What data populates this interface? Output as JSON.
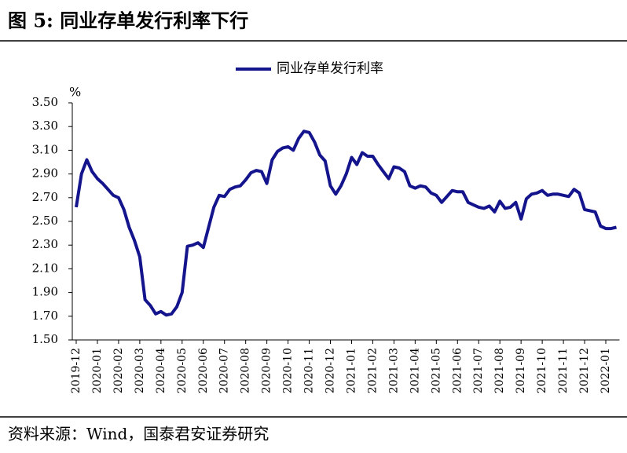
{
  "chart_data": {
    "type": "line",
    "title": "图 5:  同业存单发行利率下行",
    "y_unit": "%",
    "source": "资料来源：Wind，国泰君安证券研究",
    "categories": [
      "2019-12",
      null,
      null,
      null,
      "2020-01",
      null,
      null,
      null,
      "2020-02",
      null,
      null,
      null,
      "2020-03",
      null,
      null,
      null,
      "2020-04",
      null,
      null,
      null,
      "2020-05",
      null,
      null,
      null,
      "2020-06",
      null,
      null,
      null,
      "2020-07",
      null,
      null,
      null,
      "2020-08",
      null,
      null,
      null,
      "2020-09",
      null,
      null,
      null,
      "2020-10",
      null,
      null,
      null,
      "2020-11",
      null,
      null,
      null,
      "2020-12",
      null,
      null,
      null,
      "2021-01",
      null,
      null,
      null,
      "2021-02",
      null,
      null,
      null,
      "2021-03",
      null,
      null,
      null,
      "2021-04",
      null,
      null,
      null,
      "2021-05",
      null,
      null,
      null,
      "2021-06",
      null,
      null,
      null,
      "2021-07",
      null,
      null,
      null,
      "2021-08",
      null,
      null,
      null,
      "2021-09",
      null,
      null,
      null,
      "2021-10",
      null,
      null,
      null,
      "2021-11",
      null,
      null,
      null,
      "2021-12",
      null,
      null,
      null,
      "2022-01",
      null,
      null
    ],
    "series": [
      {
        "name": "同业存单发行利率",
        "color": "#14148c",
        "values": [
          2.62,
          2.9,
          3.02,
          2.92,
          2.86,
          2.82,
          2.77,
          2.72,
          2.7,
          2.6,
          2.45,
          2.34,
          2.2,
          1.84,
          1.79,
          1.72,
          1.74,
          1.71,
          1.72,
          1.78,
          1.9,
          2.29,
          2.3,
          2.32,
          2.28,
          2.45,
          2.62,
          2.72,
          2.71,
          2.77,
          2.79,
          2.8,
          2.85,
          2.91,
          2.93,
          2.92,
          2.82,
          3.02,
          3.09,
          3.12,
          3.13,
          3.1,
          3.2,
          3.26,
          3.25,
          3.17,
          3.06,
          3.01,
          2.8,
          2.73,
          2.8,
          2.9,
          3.04,
          2.98,
          3.08,
          3.05,
          3.05,
          2.98,
          2.92,
          2.86,
          2.96,
          2.95,
          2.92,
          2.8,
          2.78,
          2.8,
          2.79,
          2.74,
          2.72,
          2.66,
          2.71,
          2.76,
          2.75,
          2.75,
          2.66,
          2.64,
          2.62,
          2.61,
          2.63,
          2.58,
          2.67,
          2.61,
          2.62,
          2.66,
          2.52,
          2.69,
          2.73,
          2.74,
          2.76,
          2.72,
          2.73,
          2.73,
          2.72,
          2.71,
          2.77,
          2.74,
          2.6,
          2.59,
          2.58,
          2.46,
          2.44,
          2.44,
          2.45
        ]
      }
    ],
    "ylim": [
      1.5,
      3.5
    ],
    "yticks": [
      {
        "value": 1.5,
        "label": "1.50"
      },
      {
        "value": 1.7,
        "label": "1.70"
      },
      {
        "value": 1.9,
        "label": "1.90"
      },
      {
        "value": 2.1,
        "label": "2.10"
      },
      {
        "value": 2.3,
        "label": "2.30"
      },
      {
        "value": 2.5,
        "label": "2.50"
      },
      {
        "value": 2.7,
        "label": "2.70"
      },
      {
        "value": 2.9,
        "label": "2.90"
      },
      {
        "value": 3.1,
        "label": "3.10"
      },
      {
        "value": 3.3,
        "label": "3.30"
      },
      {
        "value": 3.5,
        "label": "3.50"
      }
    ],
    "legend": "top"
  }
}
